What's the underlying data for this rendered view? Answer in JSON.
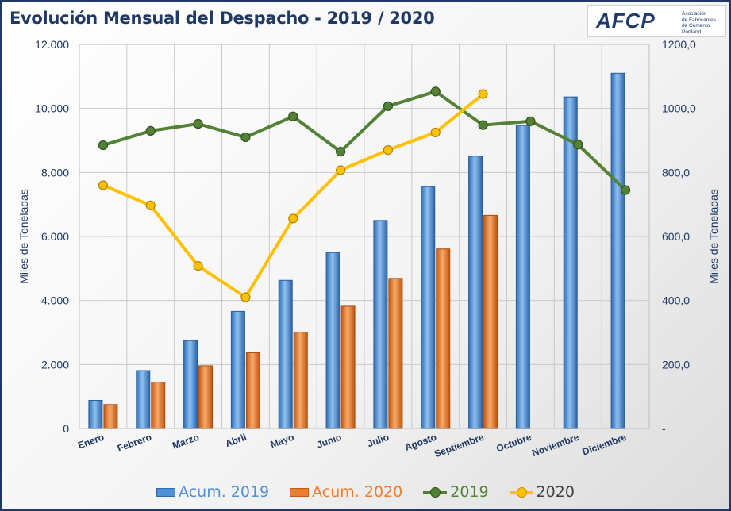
{
  "title": "Evolución Mensual del Despacho - 2019 / 2020",
  "logo": {
    "mark": "AFCP",
    "lines": [
      "Asociación",
      "de Fabricantes",
      "de Cemento",
      "Portland"
    ]
  },
  "chart_data": {
    "type": "bar",
    "categories": [
      "Enero",
      "Febrero",
      "Marzo",
      "Abril",
      "Mayo",
      "Junio",
      "Julio",
      "Agosto",
      "Septiembre",
      "Octubre",
      "Noviembre",
      "Diciembre"
    ],
    "ylabel": "Miles de Toneladas",
    "y2label": "Miles de Toneladas",
    "ylim": [
      0,
      12000
    ],
    "y2lim": [
      0,
      1200
    ],
    "yticks": [
      "0",
      "2.000",
      "4.000",
      "6.000",
      "8.000",
      "10.000",
      "12.000"
    ],
    "y2ticks": [
      "-",
      "200,0",
      "400,0",
      "600,0",
      "800,0",
      "1000,0",
      "1200,0"
    ],
    "grid": true,
    "legend_position": "bottom",
    "series": [
      {
        "name": "Acum. 2019",
        "kind": "bar",
        "axis": "left",
        "color": "#4f8fd3",
        "values": [
          880,
          1810,
          2750,
          3660,
          4630,
          5500,
          6500,
          7560,
          8510,
          9470,
          10360,
          11100
        ]
      },
      {
        "name": "Acum. 2020",
        "kind": "bar",
        "axis": "left",
        "color": "#ed7d31",
        "values": [
          750,
          1450,
          1960,
          2370,
          3010,
          3820,
          4690,
          5610,
          6660,
          null,
          null,
          null
        ]
      },
      {
        "name": "2019",
        "kind": "line",
        "axis": "right",
        "color": "#538135",
        "values": [
          885,
          930,
          952,
          910,
          975,
          865,
          1007,
          1053,
          948,
          960,
          887,
          745
        ]
      },
      {
        "name": "2020",
        "kind": "line",
        "axis": "right",
        "color": "#ffc000",
        "values": [
          760,
          697,
          508,
          410,
          656,
          807,
          870,
          925,
          1045,
          null,
          null,
          null
        ]
      }
    ]
  },
  "colors": {
    "title": "#1f3864",
    "axis_text": "#1f3864",
    "grid": "#c9c9c9",
    "legend_2019_text": "#538135",
    "legend_2020_text": "#404040"
  }
}
